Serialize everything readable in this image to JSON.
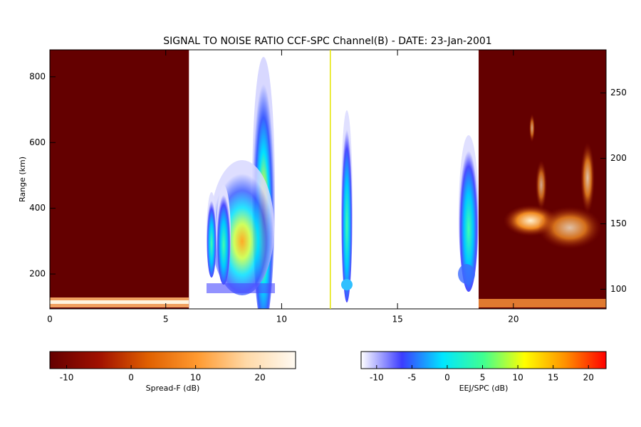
{
  "chart_data": {
    "type": "heatmap",
    "title": "SIGNAL TO NOISE RATIO CCF-SPC Channel(B) - DATE: 23-Jan-2001",
    "xlim": [
      0,
      24
    ],
    "xticks": [
      0,
      5,
      10,
      15,
      20
    ],
    "ylabel": "Range (km)",
    "ylim": [
      94,
      882
    ],
    "yticks": [
      200,
      400,
      600,
      800
    ],
    "y2lim": [
      85,
      283
    ],
    "y2ticks": [
      100,
      150,
      200,
      250
    ],
    "spread_f_windows": [
      [
        0,
        6
      ],
      [
        18.5,
        24
      ]
    ],
    "spread_f_color": "#640000",
    "marker_line": 12.1,
    "marker_color": "#e6e600",
    "colorbars": [
      {
        "label": "Spread-F (dB)",
        "lim": [
          -12.6,
          25.5
        ],
        "ticks": [
          -10,
          0,
          10,
          20
        ],
        "colors": [
          "#640000",
          "#a01000",
          "#e06000",
          "#ff9a30",
          "#ffd9a8",
          "#fffaf2"
        ]
      },
      {
        "label": "EEJ/SPC (dB)",
        "lim": [
          -12.2,
          22.5
        ],
        "ticks": [
          -10,
          -5,
          0,
          5,
          10,
          15,
          20
        ],
        "colors": [
          "#ffffff",
          "#3c3cff",
          "#00e6ff",
          "#40ff90",
          "#ffff00",
          "#ff9000",
          "#ff0000"
        ]
      }
    ]
  }
}
